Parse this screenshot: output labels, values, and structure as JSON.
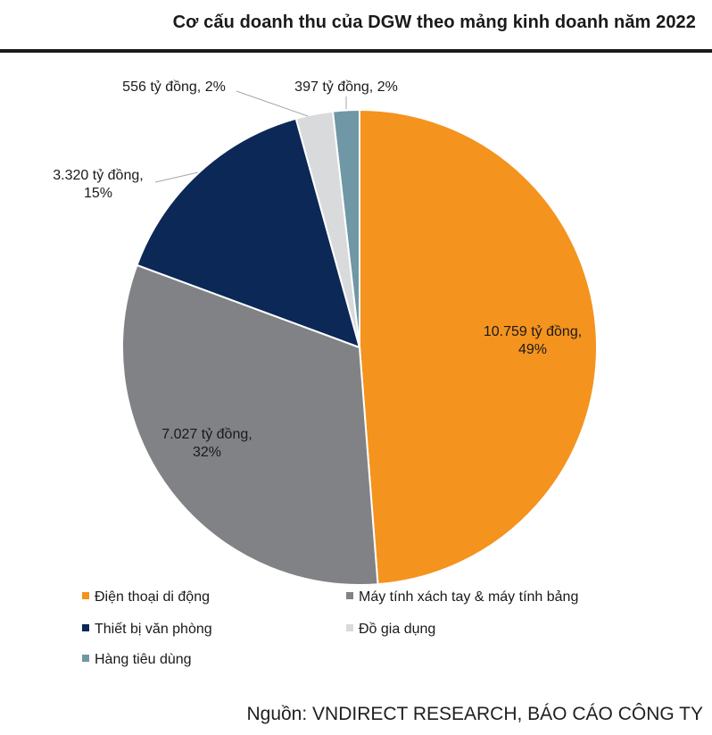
{
  "title": "Cơ cấu doanh thu của DGW theo mảng kinh doanh năm 2022",
  "source": "Nguồn: VNDIRECT RESEARCH, BÁO CÁO CÔNG TY",
  "chart_data": {
    "type": "pie",
    "title": "Cơ cấu doanh thu của DGW theo mảng kinh doanh năm 2022",
    "unit": "tỷ đồng",
    "legend_position": "bottom",
    "slices": [
      {
        "name": "Điện thoại di động",
        "value": 10759,
        "percent": 49,
        "label_value": "10.759 tỷ đồng,",
        "label_percent": "49%",
        "color": "#F4931E"
      },
      {
        "name": "Máy tính xách tay & máy tính bảng",
        "value": 7027,
        "percent": 32,
        "label_value": "7.027 tỷ đồng,",
        "label_percent": "32%",
        "color": "#808285"
      },
      {
        "name": "Thiết bị văn phòng",
        "value": 3320,
        "percent": 15,
        "label_value": "3.320 tỷ đồng,",
        "label_percent": "15%",
        "color": "#0B2857"
      },
      {
        "name": "Đồ gia dụng",
        "value": 556,
        "percent": 2,
        "label_value": "556 tỷ đồng, 2%",
        "label_percent": "",
        "color": "#D9DADB"
      },
      {
        "name": "Hàng tiêu dùng",
        "value": 397,
        "percent": 2,
        "label_value": "397 tỷ đồng, 2%",
        "label_percent": "",
        "color": "#6F97A6"
      }
    ]
  }
}
